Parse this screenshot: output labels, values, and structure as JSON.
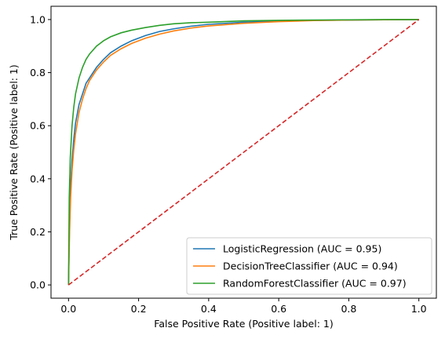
{
  "chart_data": {
    "type": "line",
    "xlabel": "False Positive Rate (Positive label: 1)",
    "ylabel": "True Positive Rate (Positive label: 1)",
    "xlim": [
      -0.05,
      1.05
    ],
    "ylim": [
      -0.05,
      1.05
    ],
    "xticks": [
      "0.0",
      "0.2",
      "0.4",
      "0.6",
      "0.8",
      "1.0"
    ],
    "yticks": [
      "0.0",
      "0.2",
      "0.4",
      "0.6",
      "0.8",
      "1.0"
    ],
    "grid": false,
    "legend_position": "lower-right",
    "series": [
      {
        "name": "LogisticRegression (AUC = 0.95)",
        "color": "#1f77b4",
        "style": "solid",
        "x": [
          0.0,
          0.003,
          0.006,
          0.01,
          0.015,
          0.02,
          0.03,
          0.04,
          0.05,
          0.06,
          0.08,
          0.1,
          0.12,
          0.15,
          0.18,
          0.22,
          0.26,
          0.3,
          0.35,
          0.4,
          0.5,
          0.6,
          0.7,
          0.8,
          0.9,
          1.0
        ],
        "y": [
          0.0,
          0.25,
          0.38,
          0.47,
          0.55,
          0.61,
          0.68,
          0.72,
          0.76,
          0.78,
          0.82,
          0.85,
          0.875,
          0.9,
          0.92,
          0.94,
          0.955,
          0.965,
          0.975,
          0.982,
          0.99,
          0.995,
          0.997,
          0.998,
          0.999,
          1.0
        ]
      },
      {
        "name": "DecisionTreeClassifier (AUC = 0.94)",
        "color": "#ff7f0e",
        "style": "solid",
        "x": [
          0.0,
          0.003,
          0.006,
          0.01,
          0.015,
          0.02,
          0.03,
          0.04,
          0.05,
          0.06,
          0.08,
          0.1,
          0.12,
          0.15,
          0.18,
          0.22,
          0.26,
          0.3,
          0.35,
          0.4,
          0.5,
          0.6,
          0.7,
          0.8,
          0.9,
          1.0
        ],
        "y": [
          0.0,
          0.2,
          0.33,
          0.43,
          0.51,
          0.57,
          0.65,
          0.7,
          0.74,
          0.77,
          0.81,
          0.84,
          0.865,
          0.89,
          0.91,
          0.93,
          0.945,
          0.957,
          0.968,
          0.976,
          0.986,
          0.992,
          0.996,
          0.998,
          0.999,
          1.0
        ]
      },
      {
        "name": "RandomForestClassifier (AUC = 0.97)",
        "color": "#2ca02c",
        "style": "solid",
        "x": [
          0.0,
          0.002,
          0.005,
          0.01,
          0.015,
          0.02,
          0.03,
          0.04,
          0.05,
          0.06,
          0.08,
          0.1,
          0.12,
          0.15,
          0.18,
          0.22,
          0.26,
          0.3,
          0.35,
          0.4,
          0.5,
          0.6,
          0.7,
          0.8,
          0.9,
          1.0
        ],
        "y": [
          0.0,
          0.33,
          0.48,
          0.6,
          0.67,
          0.72,
          0.78,
          0.82,
          0.85,
          0.87,
          0.9,
          0.92,
          0.935,
          0.95,
          0.96,
          0.97,
          0.978,
          0.984,
          0.988,
          0.99,
          0.995,
          0.997,
          0.998,
          0.999,
          1.0,
          1.0
        ]
      },
      {
        "color": "#d62728",
        "style": "dashed",
        "x": [
          0.0,
          1.0
        ],
        "y": [
          0.0,
          1.0
        ]
      }
    ]
  }
}
